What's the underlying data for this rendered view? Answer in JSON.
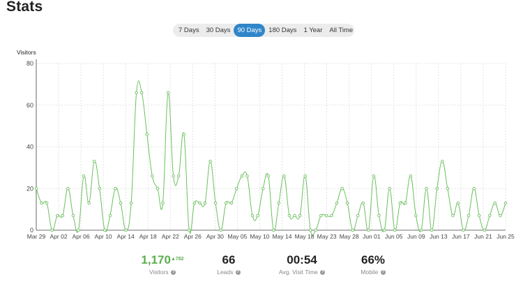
{
  "page": {
    "title": "Stats"
  },
  "range_tabs": [
    {
      "label": "7 Days",
      "active": false
    },
    {
      "label": "30 Days",
      "active": false
    },
    {
      "label": "90 Days",
      "active": true
    },
    {
      "label": "180 Days",
      "active": false
    },
    {
      "label": "1 Year",
      "active": false
    },
    {
      "label": "All Time",
      "active": false
    }
  ],
  "colors": {
    "accent": "#2f86c9",
    "line": "#6cbf5f",
    "positive": "#5cae4f"
  },
  "chart_data": {
    "type": "line",
    "ylabel": "Visitors",
    "ylim": [
      0,
      80
    ],
    "yticks": [
      "0",
      "20",
      "40",
      "60",
      "80"
    ],
    "xtick_labels": [
      "Mar 29",
      "Apr 02",
      "Apr 06",
      "Apr 10",
      "Apr 14",
      "Apr 18",
      "Apr 22",
      "Apr 26",
      "Apr 30",
      "May 05",
      "May 10",
      "May 14",
      "May 18",
      "May 23",
      "May 28",
      "Jun 01",
      "Jun 05",
      "Jun 09",
      "Jun 13",
      "Jun 17",
      "Jun 21",
      "Jun 25"
    ],
    "grid": true,
    "series": [
      {
        "values": [
          20,
          13,
          13,
          0,
          7,
          7,
          20,
          7,
          0,
          26,
          13,
          33,
          20,
          0,
          7,
          20,
          13,
          0,
          13,
          66,
          66,
          46,
          26,
          20,
          13,
          66,
          26,
          26,
          46,
          0,
          13,
          13,
          13,
          33,
          13,
          0,
          13,
          13,
          20,
          26,
          26,
          7,
          7,
          20,
          26,
          0,
          13,
          26,
          7,
          7,
          7,
          26,
          0,
          0,
          7,
          7,
          7,
          13,
          20,
          13,
          0,
          7,
          13,
          0,
          26,
          7,
          0,
          20,
          0,
          13,
          13,
          26,
          7,
          0,
          20,
          0,
          20,
          33,
          20,
          7,
          13,
          0,
          7,
          20,
          7,
          0,
          7,
          13,
          7,
          13
        ]
      }
    ]
  },
  "stats": [
    {
      "value": "1,170",
      "delta": "▲782",
      "label": "Visitors"
    },
    {
      "value": "66",
      "delta": "",
      "label": "Leads"
    },
    {
      "value": "00:54",
      "delta": "",
      "label": "Avg. Visit Time"
    },
    {
      "value": "66%",
      "delta": "",
      "label": "Mobile"
    }
  ]
}
